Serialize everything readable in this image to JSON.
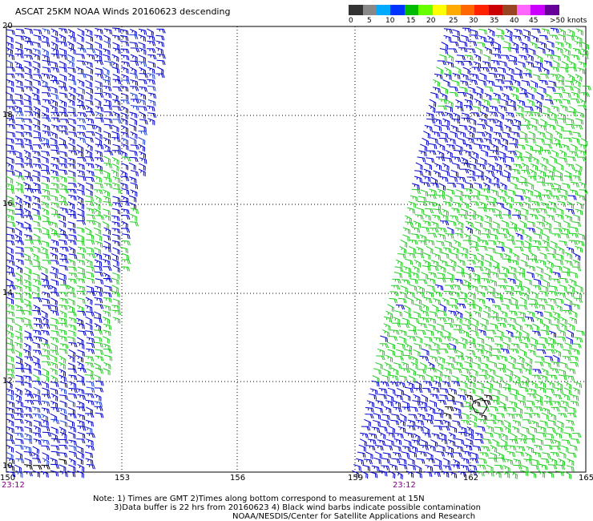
{
  "header": {
    "title": "ASCAT 25KM NOAA Winds 20160623 descending"
  },
  "colorbar": {
    "colors": [
      "#333333",
      "#888888",
      "#00aaff",
      "#0033ff",
      "#00bb00",
      "#66ff00",
      "#ffff00",
      "#ffaa00",
      "#ff6600",
      "#ff2200",
      "#cc0000",
      "#994422",
      "#ff66ff",
      "#cc00ff",
      "#660099"
    ],
    "labels": [
      "0",
      "5",
      "10",
      "15",
      "20",
      "25",
      "30",
      "35",
      "40",
      "45",
      ">50 knots"
    ]
  },
  "axes": {
    "y_labels": [
      "20",
      "18",
      "16",
      "14",
      "12",
      "10"
    ],
    "x_labels": [
      "150",
      "153",
      "156",
      "159",
      "162",
      "165"
    ],
    "swath_times": [
      "23:12",
      "23:12"
    ]
  },
  "notes": {
    "line1": "Note: 1) Times are GMT 2)Times along bottom correspond to measurement at 15N",
    "line2": "3)Data buffer is 22 hrs from 20160623 4) Black wind barbs indicate possible contamination",
    "line3": "NOAA/NESDIS/Center for Satellite Applications and Research"
  },
  "wind_colors": {
    "blue": "#0000cc",
    "mid_blue": "#1a3fd8",
    "green": "#22cc22",
    "black": "#000000"
  }
}
